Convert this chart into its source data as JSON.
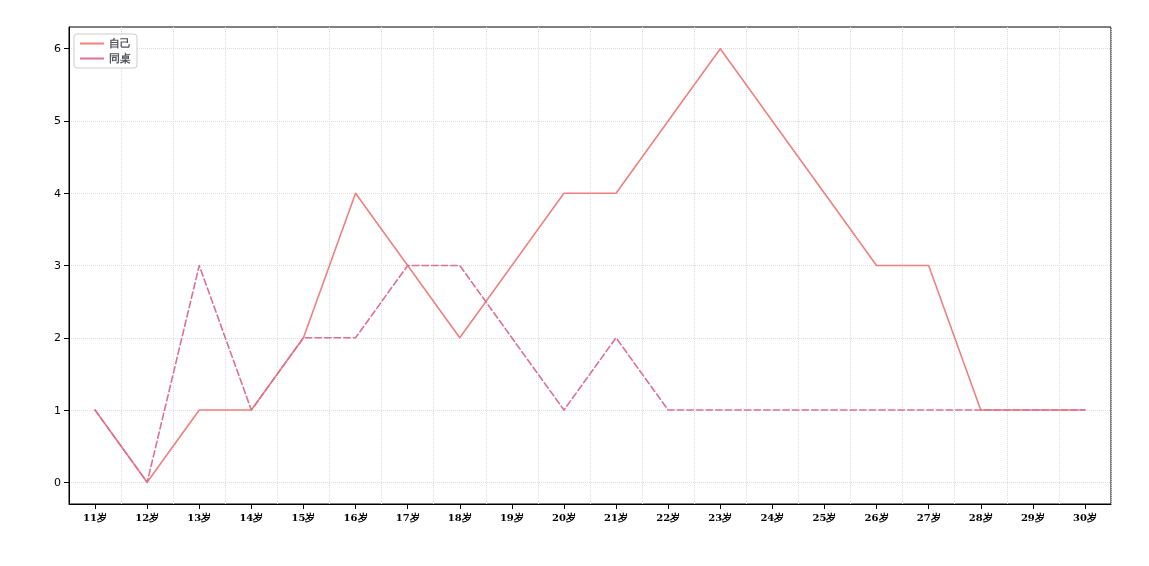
{
  "chart_data": {
    "type": "line",
    "categories": [
      "11岁",
      "12岁",
      "13岁",
      "14岁",
      "15岁",
      "16岁",
      "17岁",
      "18岁",
      "19岁",
      "20岁",
      "21岁",
      "22岁",
      "23岁",
      "24岁",
      "25岁",
      "26岁",
      "27岁",
      "28岁",
      "29岁",
      "30岁"
    ],
    "series": [
      {
        "name": "自己",
        "color": "#f08080",
        "line_style": "solid",
        "values": [
          1,
          0,
          1,
          1,
          2,
          4,
          3,
          2,
          3,
          4,
          4,
          5,
          6,
          5,
          4,
          3,
          3,
          1,
          1,
          1
        ]
      },
      {
        "name": "同桌",
        "color": "#db7093",
        "line_style": "dashed",
        "values": [
          1,
          0,
          3,
          1,
          2,
          2,
          3,
          3,
          2,
          1,
          2,
          1,
          1,
          1,
          1,
          1,
          1,
          1,
          1,
          1
        ]
      }
    ],
    "ylim": [
      -0.3,
      6.3
    ],
    "yticks": [
      0,
      1,
      2,
      3,
      4,
      5,
      6
    ],
    "grid": true,
    "legend": "top left",
    "marker": "none"
  }
}
